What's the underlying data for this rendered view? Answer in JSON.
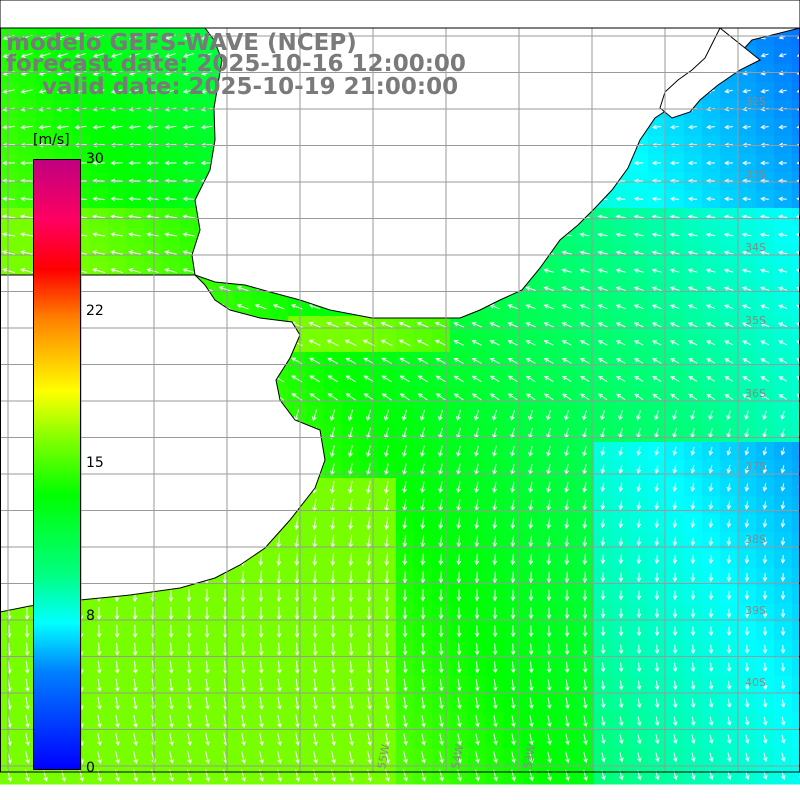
{
  "titles": {
    "model": "modelo GEFS-WAVE (NCEP)",
    "forecast": "forecast date: 2025-10-16 12:00:00",
    "valid": "valid date: 2025-10-19 21:00:00"
  },
  "colorbar": {
    "unit": "[m/s]",
    "ticks": [
      "30",
      "22",
      "15",
      "8",
      "0"
    ],
    "range": [
      0,
      30
    ],
    "colors": [
      "#0000ff",
      "#0080ff",
      "#00ffff",
      "#00ff80",
      "#00ff00",
      "#80ff00",
      "#ffff00",
      "#ff8000",
      "#ff0000",
      "#c00080"
    ]
  },
  "latitude_labels": [
    "32S",
    "33S",
    "34S",
    "35S",
    "36S",
    "37S",
    "38S",
    "39S",
    "40S"
  ],
  "longitude_labels": [
    "55W",
    "54W",
    "53W"
  ],
  "map": {
    "variable": "wind speed and direction",
    "land_color": "#ffffff",
    "grid": true
  }
}
